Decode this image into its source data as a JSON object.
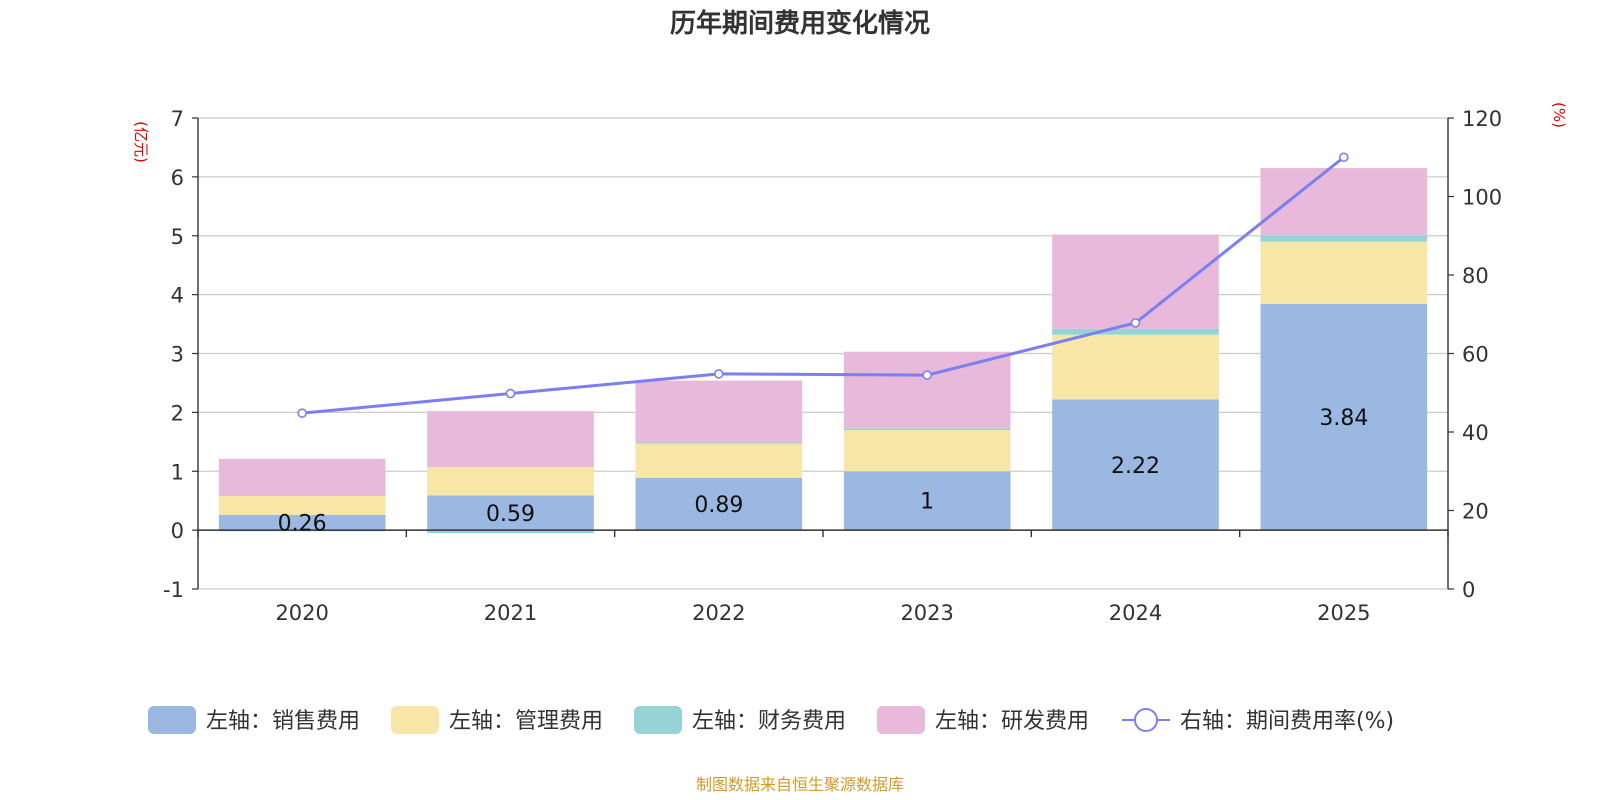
{
  "chart_data": {
    "type": "bar",
    "title": "历年期间费用变化情况",
    "categories": [
      "2020",
      "2021",
      "2022",
      "2023",
      "2024",
      "2025"
    ],
    "left_axis": {
      "unit": "(亿元)",
      "ylim": [
        -1,
        7
      ],
      "ticks": [
        "-1",
        "0",
        "1",
        "2",
        "3",
        "4",
        "5",
        "6",
        "7"
      ]
    },
    "right_axis": {
      "unit": "(%)",
      "ylim": [
        0,
        120
      ],
      "ticks": [
        "0",
        "20",
        "40",
        "60",
        "80",
        "100",
        "120"
      ]
    },
    "series": [
      {
        "name": "左轴：销售费用",
        "type": "bar",
        "axis": "left",
        "color": "#9bb8e2",
        "values": [
          0.26,
          0.59,
          0.89,
          1,
          2.22,
          3.84
        ],
        "labels": [
          "0.26",
          "0.59",
          "0.89",
          "1",
          "2.22",
          "3.84"
        ]
      },
      {
        "name": "左轴：管理费用",
        "type": "bar",
        "axis": "left",
        "color": "#f7e6a6",
        "values": [
          0.32,
          0.48,
          0.58,
          0.7,
          1.1,
          1.06
        ]
      },
      {
        "name": "左轴：财务费用",
        "type": "bar",
        "axis": "left",
        "color": "#96d3d6",
        "values": [
          -0.02,
          -0.05,
          0.02,
          0.03,
          0.1,
          0.1
        ]
      },
      {
        "name": "左轴：研发费用",
        "type": "bar",
        "axis": "left",
        "color": "#e8b9da",
        "values": [
          0.63,
          0.95,
          1.05,
          1.3,
          1.6,
          1.15
        ]
      },
      {
        "name": "右轴：期间费用率(%)",
        "type": "line",
        "axis": "right",
        "color": "#7b7ff0",
        "values": [
          44.8,
          49.8,
          54.8,
          54.5,
          67.8,
          110
        ]
      }
    ],
    "legend_position": "bottom",
    "source": "制图数据来自恒生聚源数据库"
  }
}
